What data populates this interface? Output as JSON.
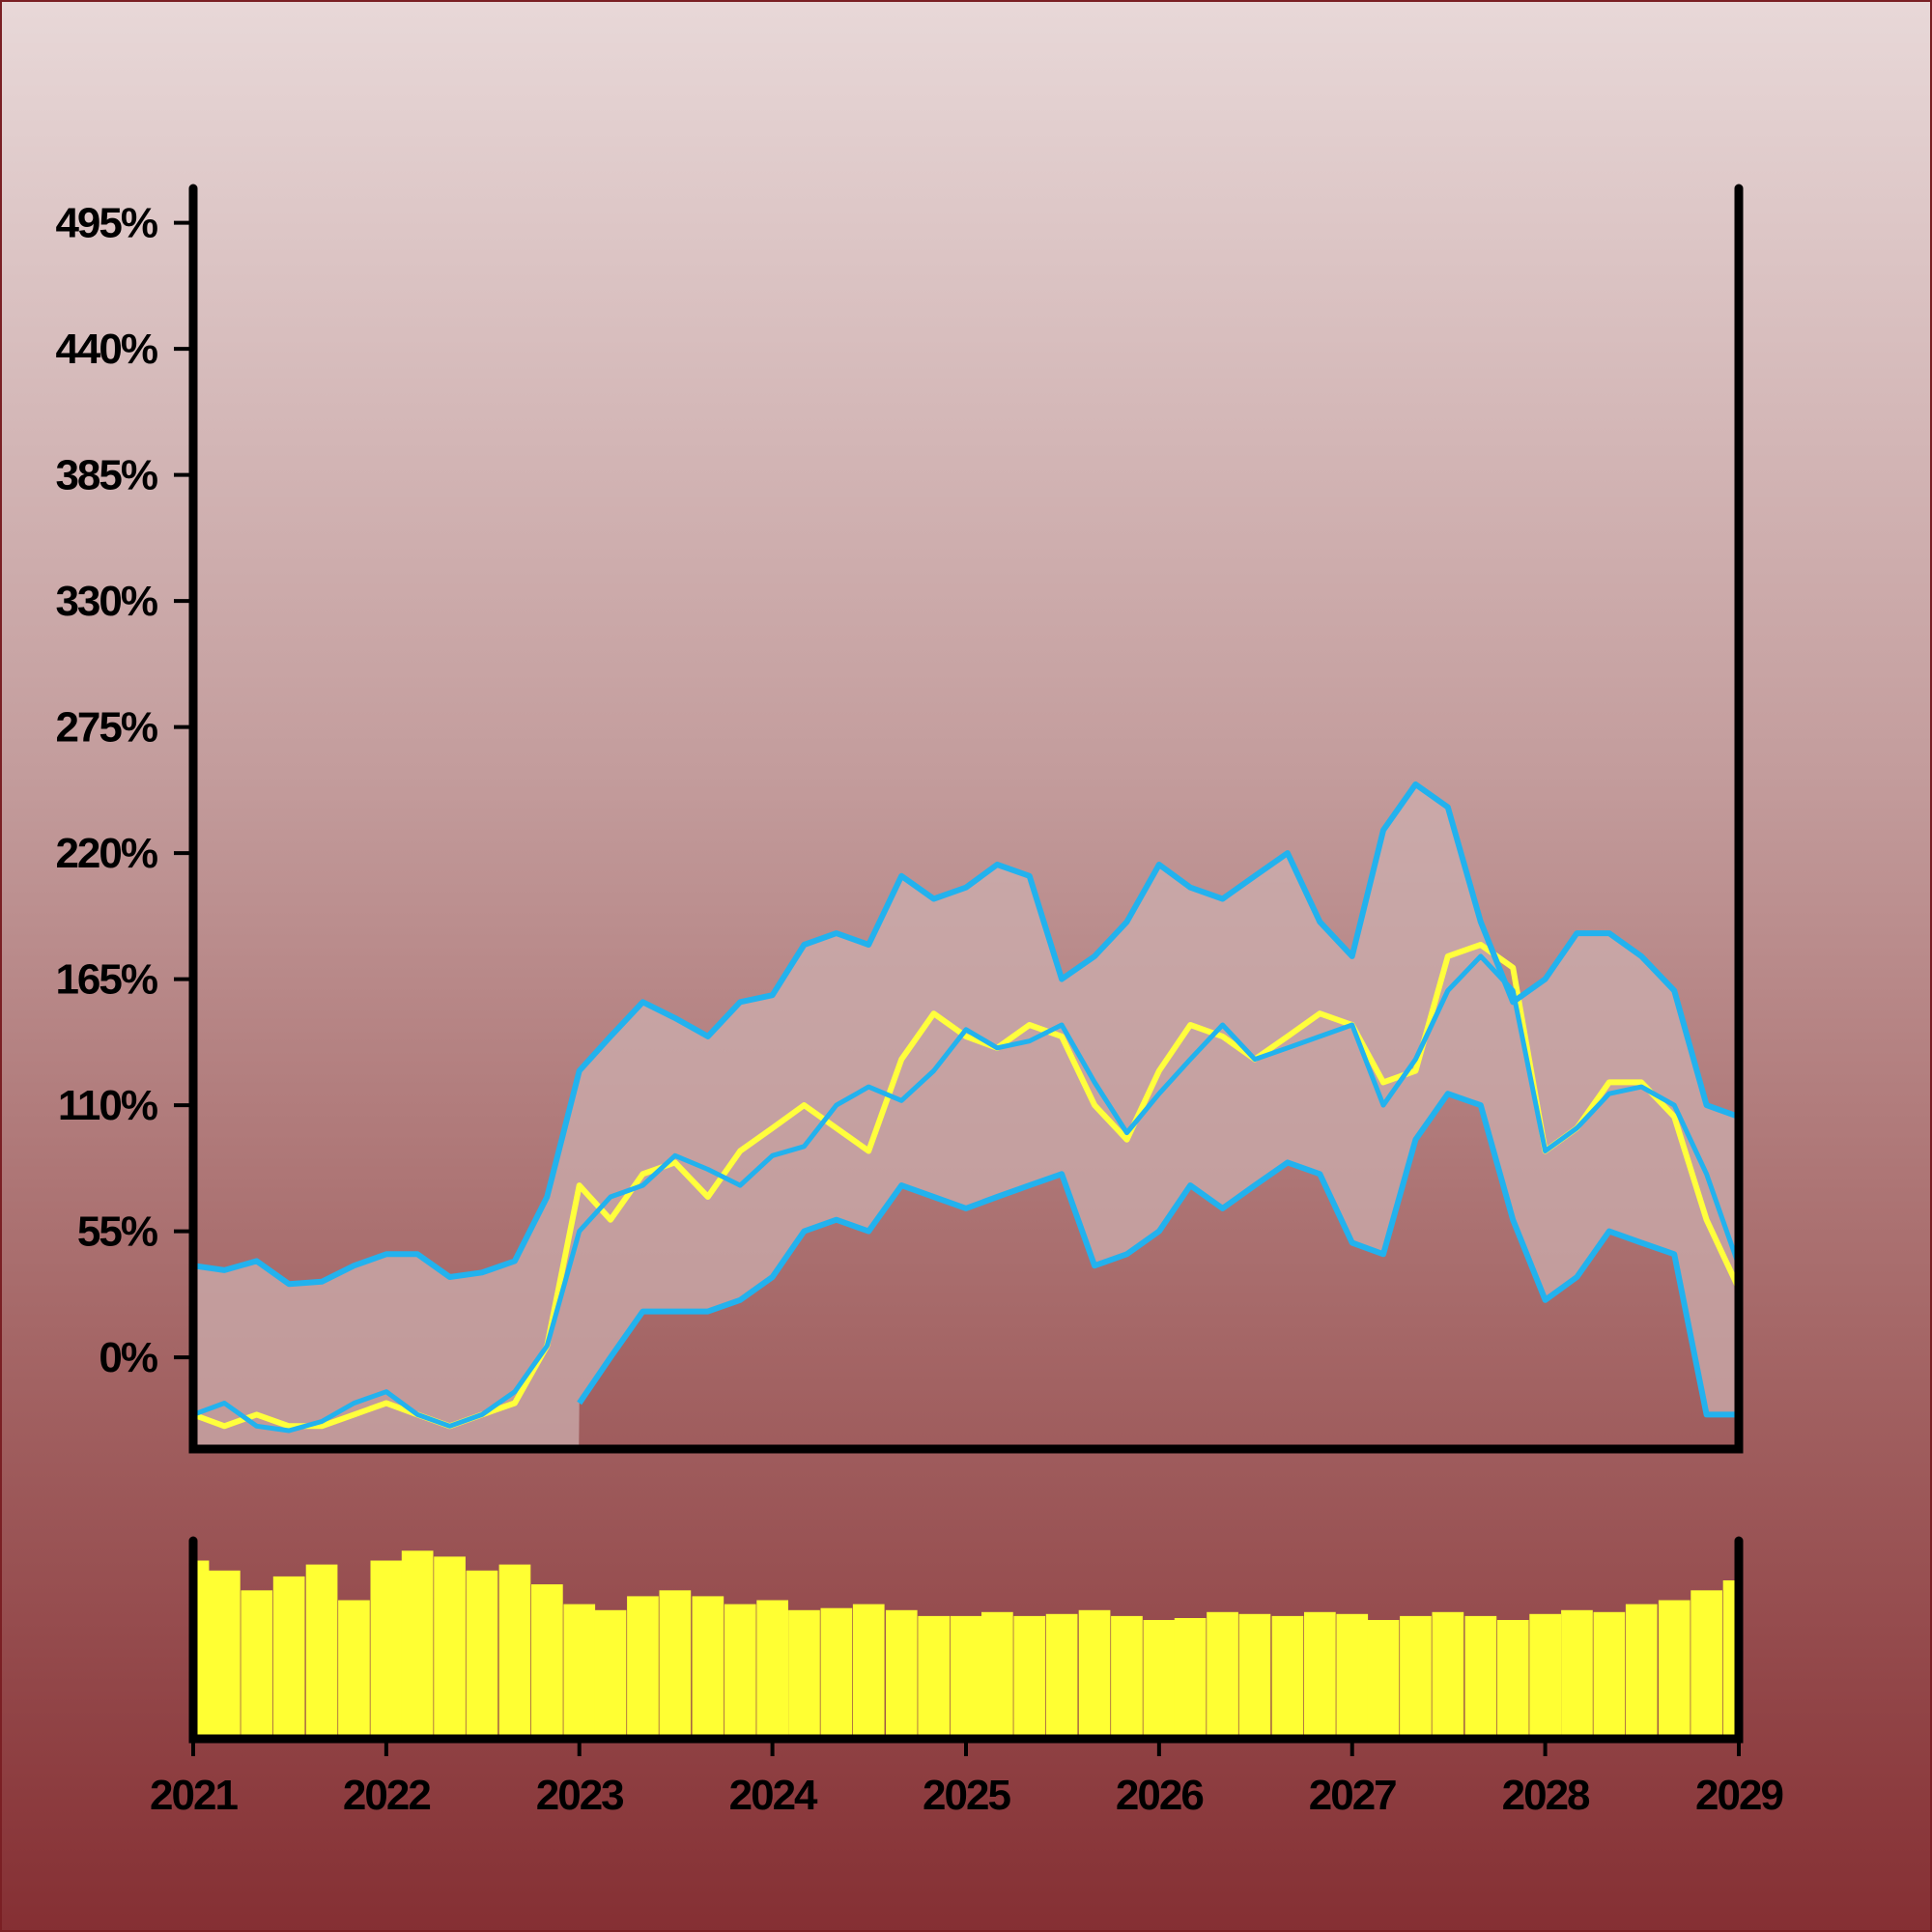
{
  "chart_data": {
    "type": "line",
    "title": "",
    "xlabel": "",
    "ylabel": "",
    "x_ticks": [
      "2021",
      "2022",
      "2023",
      "2024",
      "2025",
      "2026",
      "2027",
      "2028",
      "2029"
    ],
    "y_ticks": [
      "0%",
      "55%",
      "110%",
      "165%",
      "220%",
      "275%",
      "330%",
      "385%",
      "440%",
      "495%"
    ],
    "xlim": [
      "2021-01-01",
      "2029-01-01"
    ],
    "ylim": [
      -40,
      510
    ],
    "grid": false,
    "legend": "none",
    "series": [
      {
        "role": "price",
        "x": [
          "2021-01",
          "2021-03",
          "2021-05",
          "2021-07",
          "2021-09",
          "2021-11",
          "2022-01",
          "2022-03",
          "2022-05",
          "2022-07",
          "2022-09",
          "2022-11",
          "2023-01",
          "2023-03",
          "2023-05",
          "2023-07",
          "2023-09",
          "2023-11",
          "2024-01",
          "2024-03",
          "2024-05",
          "2024-07",
          "2024-09",
          "2024-11",
          "2025-01",
          "2025-03",
          "2025-05",
          "2025-07",
          "2025-09",
          "2025-11",
          "2026-01",
          "2026-03",
          "2026-05",
          "2026-07",
          "2026-09",
          "2026-11",
          "2027-01",
          "2027-03",
          "2027-05",
          "2027-07",
          "2027-09",
          "2027-11",
          "2028-01",
          "2028-03",
          "2028-05",
          "2028-07",
          "2028-09",
          "2028-11",
          "2029-01"
        ],
        "values": [
          -25,
          -30,
          -25,
          -30,
          -30,
          -25,
          -20,
          -25,
          -30,
          -25,
          -20,
          5,
          75,
          60,
          80,
          85,
          70,
          90,
          100,
          110,
          100,
          90,
          130,
          150,
          140,
          135,
          145,
          140,
          110,
          95,
          125,
          145,
          140,
          130,
          140,
          150,
          145,
          120,
          125,
          175,
          180,
          170,
          90,
          100,
          120,
          120,
          105,
          60,
          30
        ]
      },
      {
        "role": "moving-average",
        "x": [
          "2021-01",
          "2021-03",
          "2021-05",
          "2021-07",
          "2021-09",
          "2021-11",
          "2022-01",
          "2022-03",
          "2022-05",
          "2022-07",
          "2022-09",
          "2022-11",
          "2023-01",
          "2023-03",
          "2023-05",
          "2023-07",
          "2023-09",
          "2023-11",
          "2024-01",
          "2024-03",
          "2024-05",
          "2024-07",
          "2024-09",
          "2024-11",
          "2025-01",
          "2025-03",
          "2025-05",
          "2025-07",
          "2025-09",
          "2025-11",
          "2026-01",
          "2026-03",
          "2026-05",
          "2026-07",
          "2026-09",
          "2026-11",
          "2027-01",
          "2027-03",
          "2027-05",
          "2027-07",
          "2027-09",
          "2027-11",
          "2028-01",
          "2028-03",
          "2028-05",
          "2028-07",
          "2028-09",
          "2028-11",
          "2029-01"
        ],
        "values": [
          -25,
          -20,
          -30,
          -32,
          -28,
          -20,
          -15,
          -25,
          -30,
          -25,
          -15,
          5,
          55,
          70,
          75,
          88,
          82,
          75,
          88,
          92,
          110,
          118,
          112,
          125,
          143,
          135,
          138,
          145,
          120,
          98,
          115,
          130,
          145,
          130,
          135,
          140,
          145,
          110,
          130,
          160,
          175,
          160,
          90,
          100,
          115,
          118,
          110,
          80,
          40
        ]
      },
      {
        "role": "upper-band",
        "x": [
          "2021-01",
          "2021-03",
          "2021-05",
          "2021-07",
          "2021-09",
          "2021-11",
          "2022-01",
          "2022-03",
          "2022-05",
          "2022-07",
          "2022-09",
          "2022-11",
          "2023-01",
          "2023-03",
          "2023-05",
          "2023-07",
          "2023-09",
          "2023-11",
          "2024-01",
          "2024-03",
          "2024-05",
          "2024-07",
          "2024-09",
          "2024-11",
          "2025-01",
          "2025-03",
          "2025-05",
          "2025-07",
          "2025-09",
          "2025-11",
          "2026-01",
          "2026-03",
          "2026-05",
          "2026-07",
          "2026-09",
          "2026-11",
          "2027-01",
          "2027-03",
          "2027-05",
          "2027-07",
          "2027-09",
          "2027-11",
          "2028-01",
          "2028-03",
          "2028-05",
          "2028-07",
          "2028-09",
          "2028-11",
          "2029-01"
        ],
        "values": [
          40,
          38,
          42,
          32,
          33,
          40,
          45,
          45,
          35,
          37,
          42,
          70,
          125,
          140,
          155,
          148,
          140,
          155,
          158,
          180,
          185,
          180,
          210,
          200,
          205,
          215,
          210,
          165,
          175,
          190,
          215,
          205,
          200,
          210,
          220,
          190,
          175,
          230,
          250,
          240,
          190,
          155,
          165,
          185,
          185,
          175,
          160,
          110,
          105
        ]
      },
      {
        "role": "lower-band",
        "x": [
          "2023-01",
          "2023-03",
          "2023-05",
          "2023-07",
          "2023-09",
          "2023-11",
          "2024-01",
          "2024-03",
          "2024-05",
          "2024-07",
          "2024-09",
          "2024-11",
          "2025-01",
          "2025-03",
          "2025-05",
          "2025-07",
          "2025-09",
          "2025-11",
          "2026-01",
          "2026-03",
          "2026-05",
          "2026-07",
          "2026-09",
          "2026-11",
          "2027-01",
          "2027-03",
          "2027-05",
          "2027-07",
          "2027-09",
          "2027-11",
          "2028-01",
          "2028-03",
          "2028-05",
          "2028-07",
          "2028-09",
          "2028-11",
          "2029-01"
        ],
        "values": [
          -20,
          0,
          20,
          20,
          20,
          25,
          35,
          55,
          60,
          55,
          75,
          70,
          65,
          70,
          75,
          80,
          40,
          45,
          55,
          75,
          65,
          75,
          85,
          80,
          50,
          45,
          95,
          115,
          110,
          60,
          25,
          35,
          55,
          50,
          45,
          -25,
          -25
        ]
      },
      {
        "role": "volume",
        "type": "bar",
        "x": [
          "2021-01",
          "2021-03",
          "2021-05",
          "2021-07",
          "2021-09",
          "2021-11",
          "2022-01",
          "2022-03",
          "2022-05",
          "2022-07",
          "2022-09",
          "2022-11",
          "2023-01",
          "2023-03",
          "2023-05",
          "2023-07",
          "2023-09",
          "2023-11",
          "2024-01",
          "2024-03",
          "2024-05",
          "2024-07",
          "2024-09",
          "2024-11",
          "2025-01",
          "2025-03",
          "2025-05",
          "2025-07",
          "2025-09",
          "2025-11",
          "2026-01",
          "2026-03",
          "2026-05",
          "2026-07",
          "2026-09",
          "2026-11",
          "2027-01",
          "2027-03",
          "2027-05",
          "2027-07",
          "2027-09",
          "2027-11",
          "2028-01",
          "2028-03",
          "2028-05",
          "2028-07",
          "2028-09",
          "2028-11",
          "2029-01"
        ],
        "values": [
          90,
          85,
          75,
          82,
          88,
          70,
          90,
          95,
          92,
          85,
          88,
          78,
          68,
          65,
          72,
          75,
          72,
          68,
          70,
          65,
          66,
          68,
          65,
          62,
          62,
          64,
          62,
          63,
          65,
          62,
          60,
          61,
          64,
          63,
          62,
          64,
          63,
          60,
          62,
          64,
          62,
          60,
          63,
          65,
          64,
          68,
          70,
          75,
          80
        ]
      }
    ],
    "colors": {
      "price": "#ffff3c",
      "moving_average": "#22b2ee",
      "bands": "#22b2ee",
      "band_fill": "#ccadad",
      "volume": "#ffff33",
      "axes": "#000000"
    }
  }
}
